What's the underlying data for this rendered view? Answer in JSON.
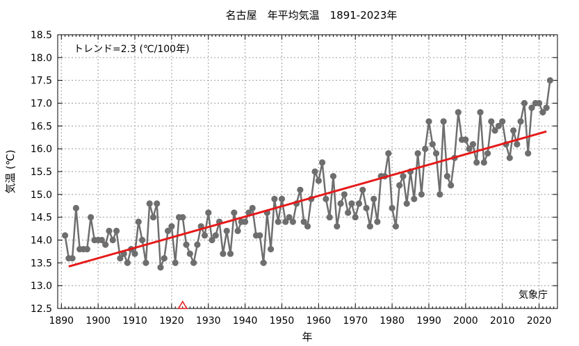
{
  "chart_data": {
    "type": "line",
    "title": "名古屋　年平均気温　1891-2023年",
    "xlabel": "年",
    "ylabel": "気温 (℃)",
    "trend_label": "トレンド=2.3 (℃/100年)",
    "credit": "気象庁",
    "xlim": [
      1889,
      2025
    ],
    "ylim": [
      12.5,
      18.5
    ],
    "x_ticks": [
      1890,
      1900,
      1910,
      1920,
      1930,
      1940,
      1950,
      1960,
      1970,
      1980,
      1990,
      2000,
      2010,
      2020
    ],
    "y_ticks": [
      "12.5",
      "13.0",
      "13.5",
      "14.0",
      "14.5",
      "15.0",
      "15.5",
      "16.0",
      "16.5",
      "17.0",
      "17.5",
      "18.0",
      "18.5"
    ],
    "grid": true,
    "series_color": "#6e6e6e",
    "trend_color": "#e61919",
    "marker_color": "#e61919",
    "start_year": 1891,
    "values": [
      14.1,
      13.6,
      13.6,
      14.7,
      13.8,
      13.8,
      13.8,
      14.5,
      14.0,
      14.0,
      14.0,
      13.9,
      14.2,
      14.0,
      14.2,
      13.6,
      13.7,
      13.5,
      13.8,
      13.7,
      14.4,
      14.0,
      13.5,
      14.8,
      14.5,
      14.8,
      13.4,
      13.6,
      14.2,
      14.3,
      13.5,
      14.5,
      14.5,
      13.9,
      13.7,
      13.5,
      13.9,
      14.3,
      14.1,
      14.6,
      14.0,
      14.1,
      14.4,
      13.7,
      14.2,
      13.7,
      14.6,
      14.2,
      14.4,
      14.4,
      14.6,
      14.7,
      14.1,
      14.1,
      13.5,
      14.6,
      13.8,
      14.9,
      14.4,
      14.9,
      14.4,
      14.5,
      14.4,
      14.8,
      15.1,
      14.4,
      14.3,
      14.9,
      15.5,
      15.3,
      15.7,
      14.9,
      14.5,
      15.4,
      14.3,
      14.8,
      15.0,
      14.6,
      14.8,
      14.5,
      14.8,
      15.1,
      14.7,
      14.3,
      14.9,
      14.4,
      15.4,
      15.4,
      15.9,
      14.7,
      14.3,
      15.2,
      15.4,
      14.8,
      15.5,
      14.9,
      15.9,
      15.0,
      16.0,
      16.6,
      16.1,
      15.9,
      15.0,
      16.6,
      15.4,
      15.2,
      15.8,
      16.8,
      16.2,
      16.2,
      16.0,
      16.1,
      15.7,
      16.8,
      15.7,
      15.9,
      16.6,
      16.4,
      16.5,
      16.6,
      16.1,
      15.8,
      16.4,
      16.1,
      16.6,
      17.0,
      15.9,
      16.9,
      17.0,
      17.0,
      16.8,
      16.9,
      17.5
    ],
    "trend": {
      "x": [
        1892,
        2022
      ],
      "y": [
        13.42,
        16.38
      ]
    },
    "markers": [
      {
        "x": 1923,
        "y": 12.5,
        "shape": "triangle"
      }
    ]
  }
}
